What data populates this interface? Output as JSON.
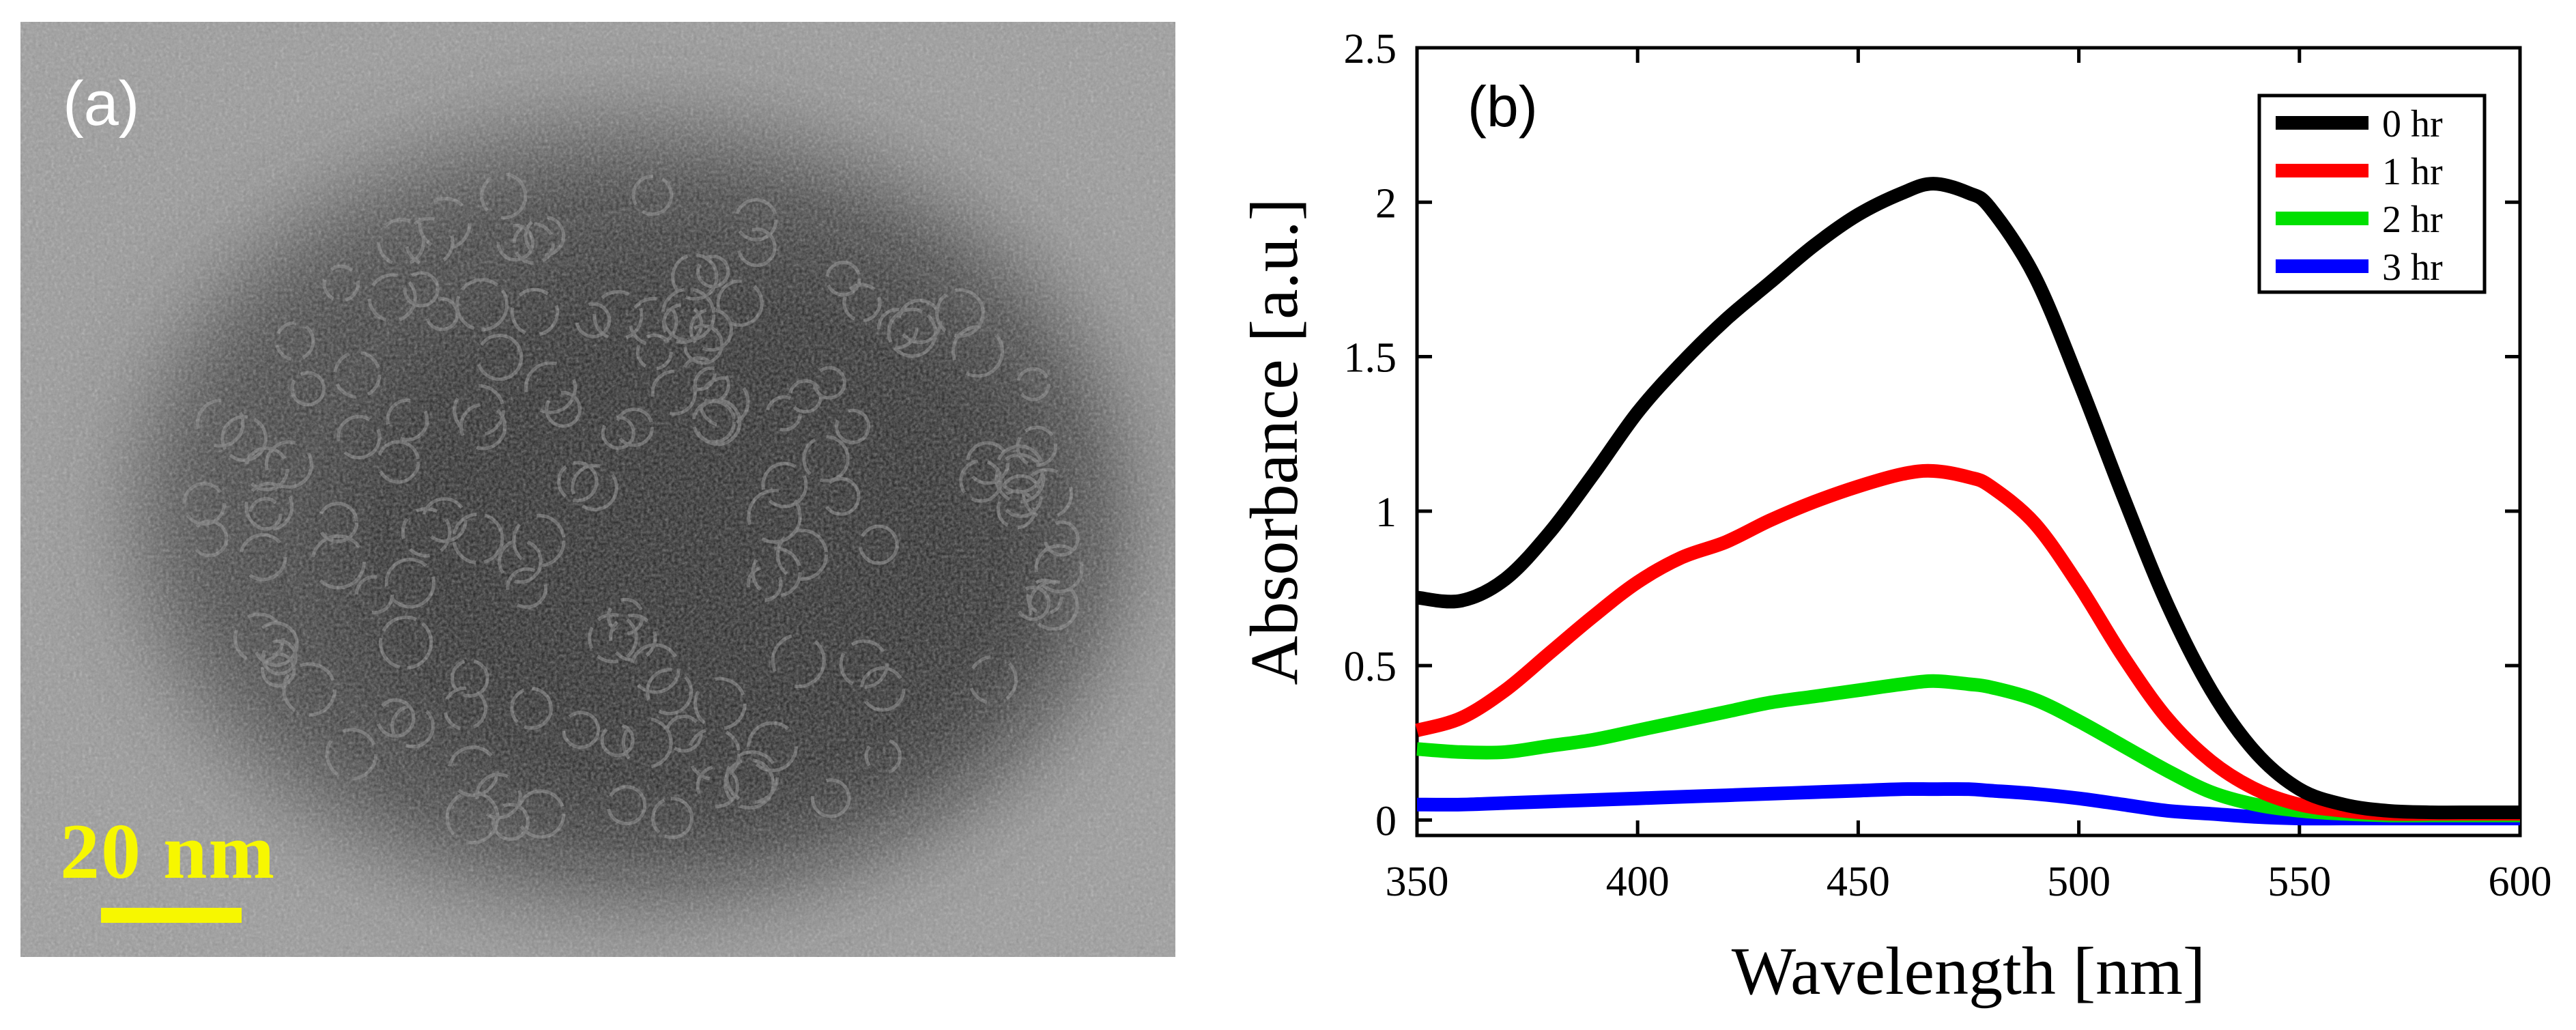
{
  "panel_a": {
    "label": "(a)",
    "scale_bar_label": "20 nm"
  },
  "panel_b": {
    "label": "(b)"
  },
  "colors": {
    "series_0": "#000000",
    "series_1": "#ff0000",
    "series_2": "#00e000",
    "series_3": "#0000ff",
    "scale": "#f7f700"
  },
  "chart_data": {
    "type": "line",
    "title": "",
    "xlabel": "Wavelength [nm]",
    "ylabel": "Absorbance [a.u.]",
    "xlim": [
      350,
      600
    ],
    "ylim": [
      -0.05,
      2.5
    ],
    "xticks": [
      350,
      400,
      450,
      500,
      550,
      600
    ],
    "xtick_labels": [
      "350",
      "400",
      "450",
      "500",
      "550",
      "600"
    ],
    "yticks": [
      0,
      0.5,
      1,
      1.5,
      2,
      2.5
    ],
    "ytick_labels": [
      "0",
      "0.5",
      "1",
      "1.5",
      "2",
      "2.5"
    ],
    "legend_position": "top-right",
    "series": [
      {
        "name": "0 hr",
        "color": "#000000",
        "x": [
          350,
          360,
          370,
          380,
          390,
          400,
          410,
          420,
          430,
          440,
          450,
          460,
          467,
          475,
          480,
          490,
          500,
          510,
          520,
          530,
          540,
          550,
          560,
          570,
          580,
          590,
          600
        ],
        "y": [
          0.72,
          0.71,
          0.78,
          0.93,
          1.12,
          1.32,
          1.48,
          1.62,
          1.74,
          1.86,
          1.96,
          2.03,
          2.06,
          2.03,
          1.98,
          1.76,
          1.42,
          1.05,
          0.7,
          0.42,
          0.22,
          0.1,
          0.05,
          0.03,
          0.025,
          0.025,
          0.025
        ]
      },
      {
        "name": "1 hr",
        "color": "#ff0000",
        "x": [
          350,
          360,
          370,
          380,
          390,
          400,
          410,
          420,
          430,
          440,
          450,
          460,
          467,
          475,
          480,
          490,
          500,
          510,
          520,
          530,
          540,
          550,
          560,
          570,
          580,
          590,
          600
        ],
        "y": [
          0.29,
          0.33,
          0.42,
          0.54,
          0.66,
          0.77,
          0.85,
          0.9,
          0.97,
          1.03,
          1.08,
          1.12,
          1.13,
          1.11,
          1.08,
          0.96,
          0.76,
          0.53,
          0.33,
          0.19,
          0.1,
          0.05,
          0.03,
          0.02,
          0.02,
          0.02,
          0.02
        ]
      },
      {
        "name": "2 hr",
        "color": "#00e000",
        "x": [
          350,
          360,
          370,
          380,
          390,
          400,
          410,
          420,
          430,
          440,
          450,
          460,
          467,
          475,
          480,
          490,
          500,
          510,
          520,
          530,
          540,
          550,
          560,
          570,
          580,
          590,
          600
        ],
        "y": [
          0.23,
          0.22,
          0.22,
          0.24,
          0.26,
          0.29,
          0.32,
          0.35,
          0.38,
          0.4,
          0.42,
          0.44,
          0.45,
          0.44,
          0.43,
          0.39,
          0.32,
          0.24,
          0.16,
          0.09,
          0.05,
          0.03,
          0.02,
          0.015,
          0.015,
          0.015,
          0.015
        ]
      },
      {
        "name": "3 hr",
        "color": "#0000ff",
        "x": [
          350,
          360,
          370,
          380,
          390,
          400,
          410,
          420,
          430,
          440,
          450,
          460,
          467,
          475,
          480,
          490,
          500,
          510,
          520,
          530,
          540,
          550,
          560,
          570,
          580,
          590,
          600
        ],
        "y": [
          0.05,
          0.05,
          0.055,
          0.06,
          0.065,
          0.07,
          0.075,
          0.08,
          0.085,
          0.09,
          0.095,
          0.1,
          0.1,
          0.1,
          0.095,
          0.085,
          0.07,
          0.05,
          0.03,
          0.02,
          0.01,
          0.005,
          0.005,
          0.005,
          0.005,
          0.005,
          0.005
        ]
      }
    ]
  }
}
